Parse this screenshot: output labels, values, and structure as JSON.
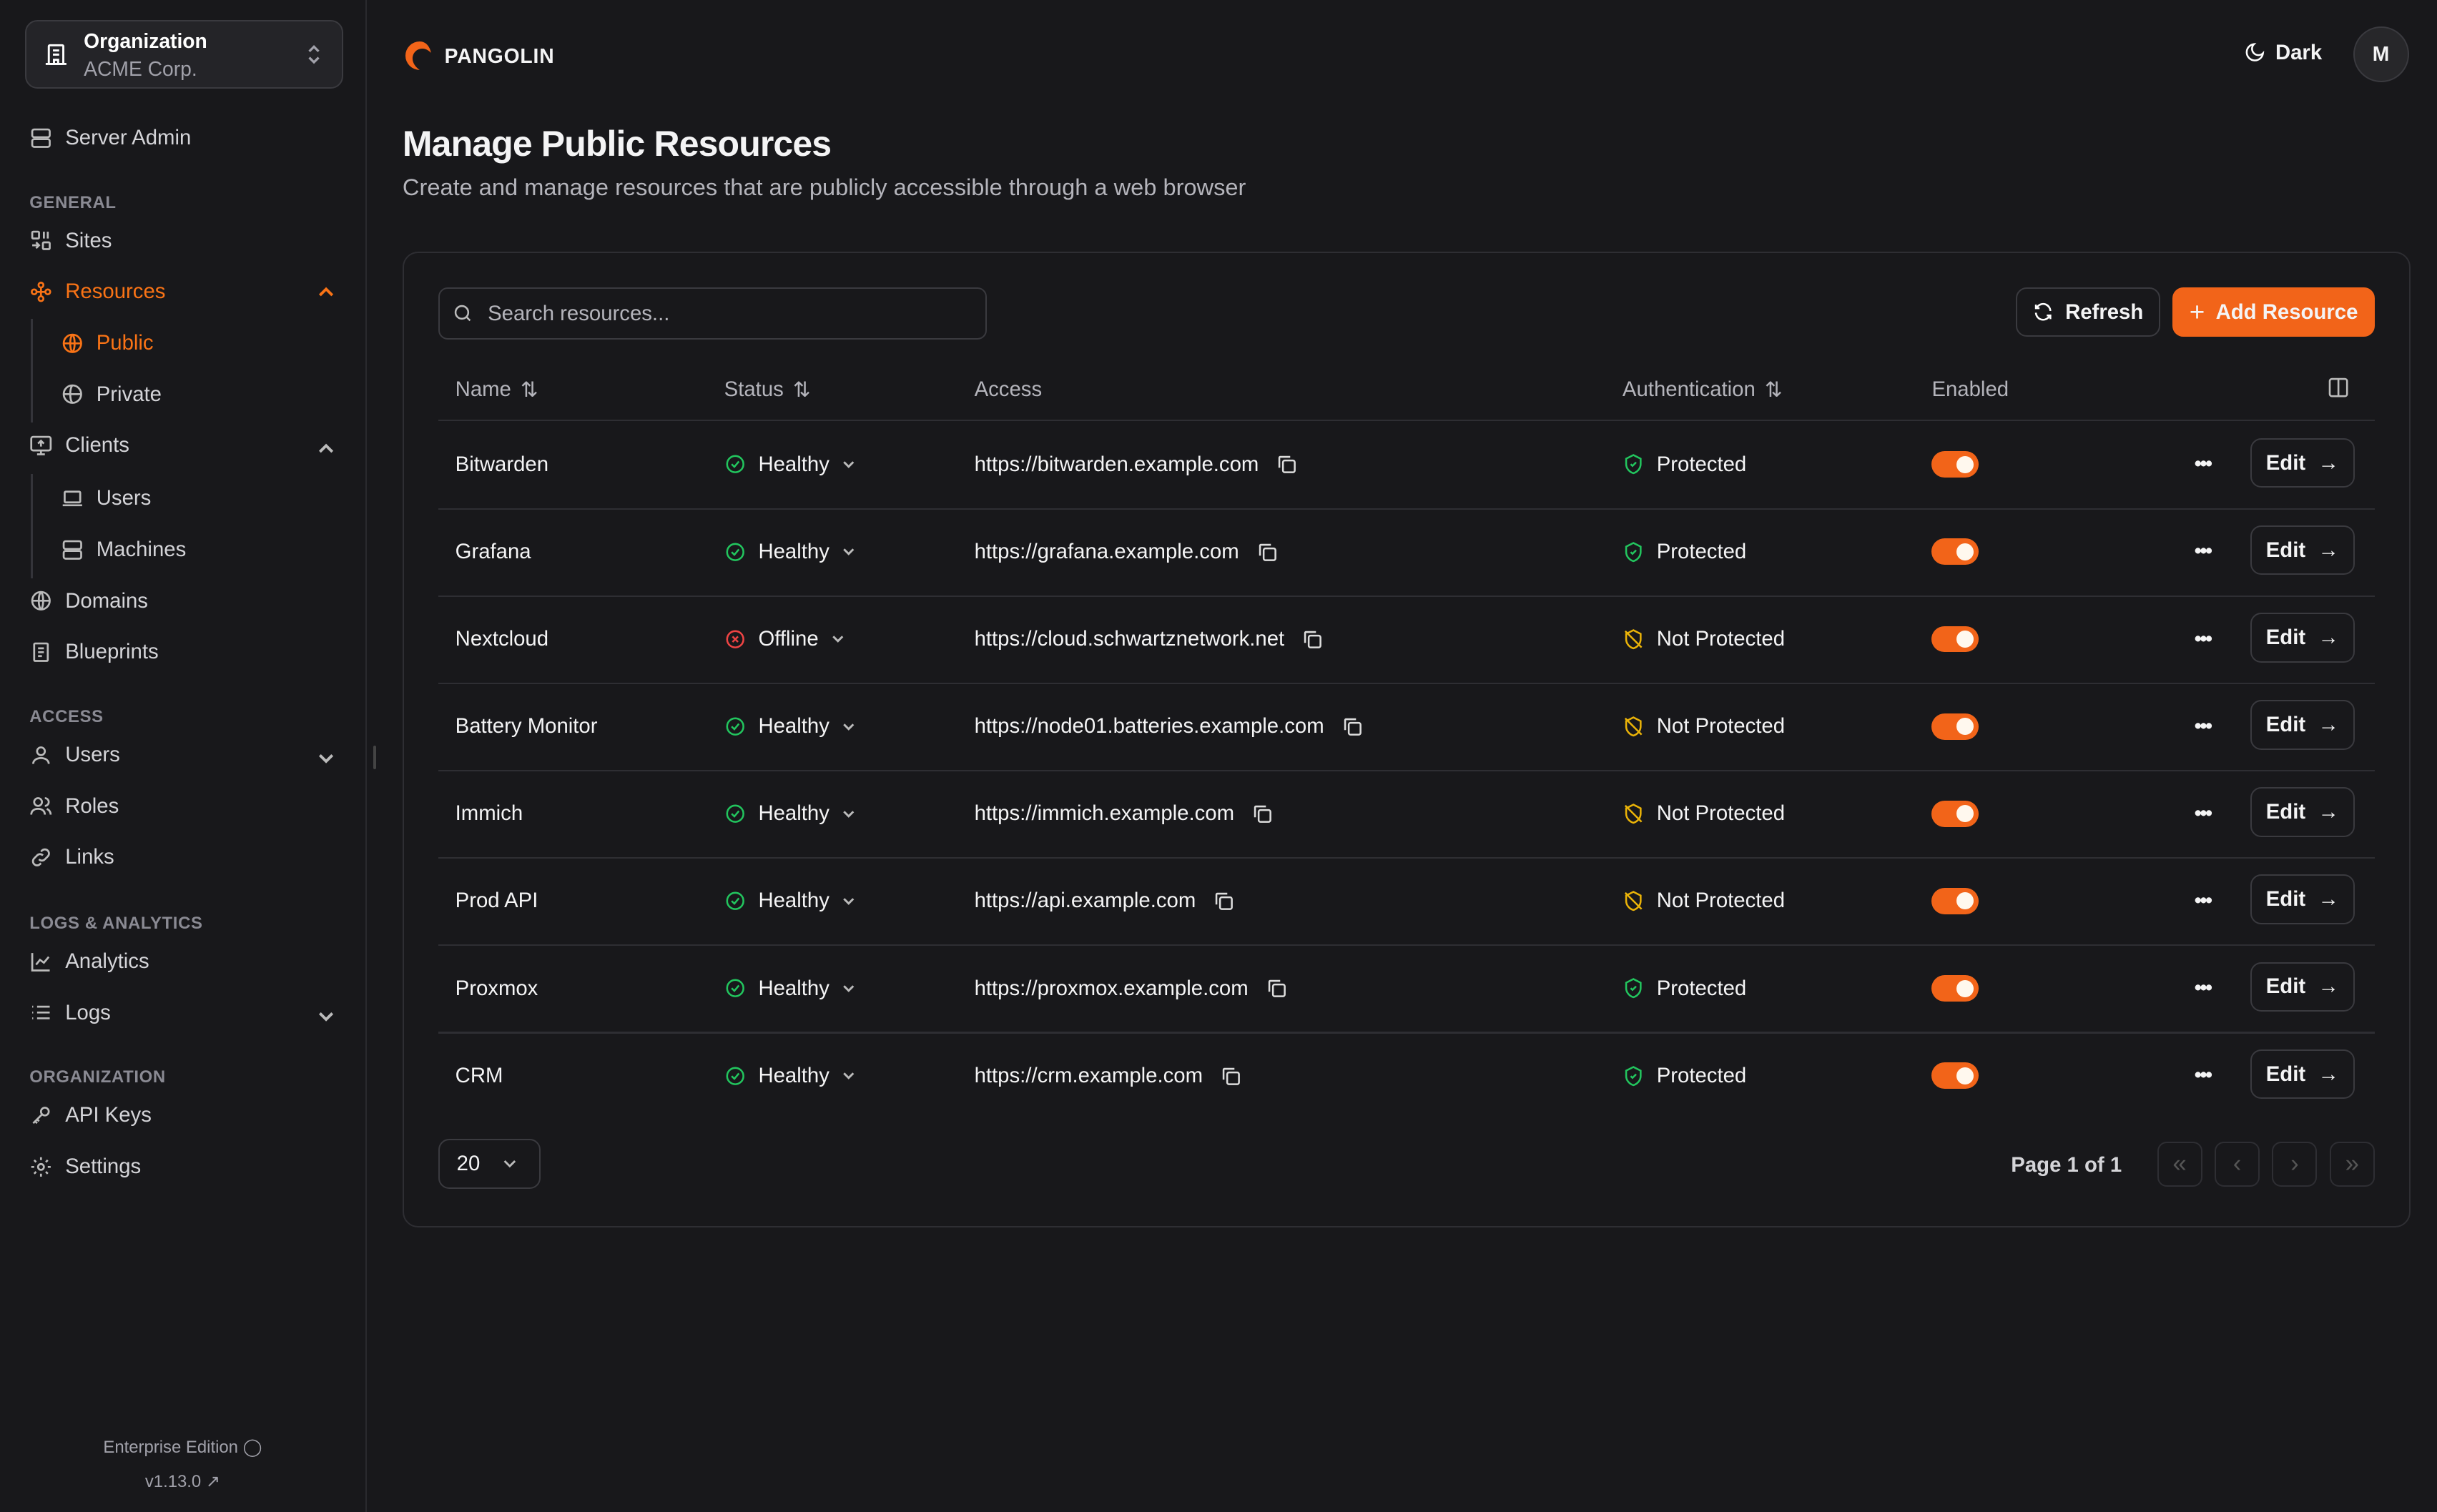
{
  "org": {
    "label": "Organization",
    "name": "ACME Corp."
  },
  "sidebar": {
    "server_admin": "Server Admin",
    "sections": {
      "general": "GENERAL",
      "access": "ACCESS",
      "logs": "LOGS & ANALYTICS",
      "organization": "ORGANIZATION"
    },
    "items": {
      "sites": "Sites",
      "resources": "Resources",
      "public": "Public",
      "private": "Private",
      "clients": "Clients",
      "client_users": "Users",
      "machines": "Machines",
      "domains": "Domains",
      "blueprints": "Blueprints",
      "users": "Users",
      "roles": "Roles",
      "links": "Links",
      "analytics": "Analytics",
      "logs": "Logs",
      "api_keys": "API Keys",
      "settings": "Settings"
    },
    "edition": "Enterprise Edition",
    "version": "v1.13.0"
  },
  "header": {
    "brand": "PANGOLIN",
    "theme": "Dark",
    "avatar": "M"
  },
  "page": {
    "title": "Manage Public Resources",
    "subtitle": "Create and manage resources that are publicly accessible through a web browser"
  },
  "toolbar": {
    "search_placeholder": "Search resources...",
    "refresh": "Refresh",
    "add": "Add Resource"
  },
  "colors": {
    "accent": "#f26419",
    "healthy": "#22c55e",
    "offline": "#ef4444",
    "not_protected": "#eab308"
  },
  "table": {
    "columns": {
      "name": "Name",
      "status": "Status",
      "access": "Access",
      "auth": "Authentication",
      "enabled": "Enabled"
    },
    "edit_label": "Edit",
    "rows": [
      {
        "name": "Bitwarden",
        "status": "Healthy",
        "access": "https://bitwarden.example.com",
        "auth": "Protected",
        "enabled": true
      },
      {
        "name": "Grafana",
        "status": "Healthy",
        "access": "https://grafana.example.com",
        "auth": "Protected",
        "enabled": true
      },
      {
        "name": "Nextcloud",
        "status": "Offline",
        "access": "https://cloud.schwartznetwork.net",
        "auth": "Not Protected",
        "enabled": true
      },
      {
        "name": "Battery Monitor",
        "status": "Healthy",
        "access": "https://node01.batteries.example.com",
        "auth": "Not Protected",
        "enabled": true
      },
      {
        "name": "Immich",
        "status": "Healthy",
        "access": "https://immich.example.com",
        "auth": "Not Protected",
        "enabled": true
      },
      {
        "name": "Prod API",
        "status": "Healthy",
        "access": "https://api.example.com",
        "auth": "Not Protected",
        "enabled": true
      },
      {
        "name": "Proxmox",
        "status": "Healthy",
        "access": "https://proxmox.example.com",
        "auth": "Protected",
        "enabled": true
      },
      {
        "name": "CRM",
        "status": "Healthy",
        "access": "https://crm.example.com",
        "auth": "Protected",
        "enabled": true
      }
    ]
  },
  "pagination": {
    "page_size": "20",
    "page_info": "Page 1 of 1"
  }
}
